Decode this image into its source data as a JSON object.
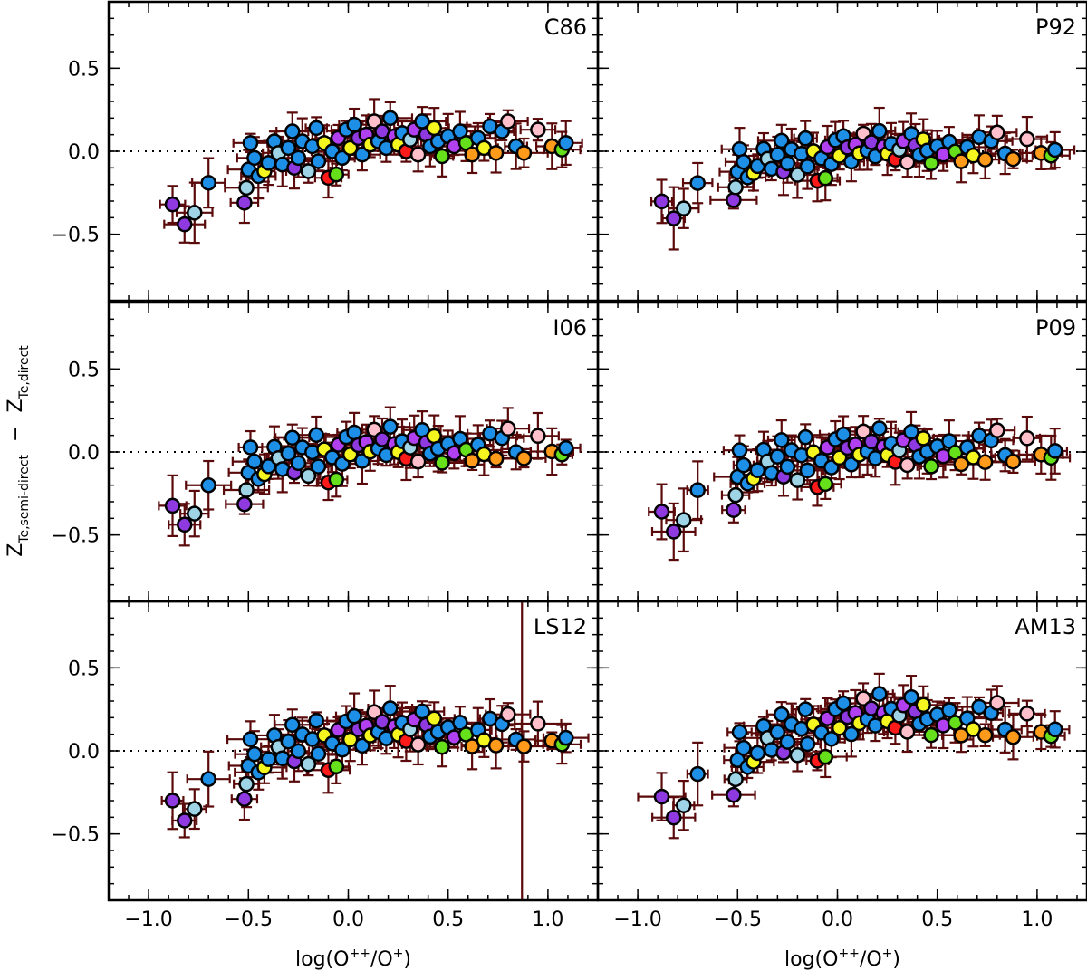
{
  "chart_data": {
    "type": "scatter",
    "layout": {
      "rows": 3,
      "cols": 2,
      "shared_axes": true
    },
    "xlabel_parts": {
      "base": "log(O",
      "sup": "++",
      "mid": "/O",
      "sup2": "+",
      "end": ")"
    },
    "ylabel_parts": {
      "z1": "Z",
      "sub1": "Te,semi-direct",
      "minus": "−",
      "z2": "Z",
      "sub2": "Te,direct"
    },
    "xlim": [
      -1.2,
      1.25
    ],
    "ylim": [
      -0.9,
      0.9
    ],
    "x_ticks": [
      -1.0,
      -0.5,
      0.0,
      0.5,
      1.0
    ],
    "x_tick_labels": [
      "−1.0",
      "−0.5",
      "0.0",
      "0.5",
      "1.0"
    ],
    "y_ticks": [
      -0.5,
      0.0,
      0.5
    ],
    "y_tick_labels": [
      "−0.5",
      "0.0",
      "0.5"
    ],
    "zero_line": 0.0,
    "colors": {
      "error_bar": "#5a0a0a",
      "palette": [
        "#8e3ae0",
        "#9fd3e6",
        "#1e8fe6",
        "#f5f520",
        "#ff1a1a",
        "#66e01a",
        "#ff9a1a",
        "#ffc0cb",
        "#b040f0"
      ]
    },
    "panels": [
      {
        "label": "C86",
        "shift": 0.0,
        "amp": 1.0,
        "extra": 0.0
      },
      {
        "label": "P92",
        "shift": -0.03,
        "amp": 0.85,
        "extra": -0.02
      },
      {
        "label": "I06",
        "shift": -0.02,
        "amp": 0.95,
        "extra": -0.02
      },
      {
        "label": "P09",
        "shift": -0.04,
        "amp": 1.0,
        "extra": -0.02
      },
      {
        "label": "LS12",
        "shift": 0.02,
        "amp": 1.0,
        "extra": 0.04
      },
      {
        "label": "AM13",
        "shift": 0.06,
        "amp": 1.05,
        "extra": 0.08
      }
    ],
    "base_points": [
      {
        "x": -0.88,
        "y": -0.32,
        "c": 0
      },
      {
        "x": -0.82,
        "y": -0.44,
        "c": 0
      },
      {
        "x": -0.77,
        "y": -0.37,
        "c": 1
      },
      {
        "x": -0.7,
        "y": -0.19,
        "c": 2
      },
      {
        "x": -0.52,
        "y": -0.31,
        "c": 0
      },
      {
        "x": -0.51,
        "y": -0.22,
        "c": 1
      },
      {
        "x": -0.5,
        "y": -0.11,
        "c": 2
      },
      {
        "x": -0.49,
        "y": 0.05,
        "c": 2
      },
      {
        "x": -0.47,
        "y": -0.04,
        "c": 2
      },
      {
        "x": -0.45,
        "y": -0.15,
        "c": 2
      },
      {
        "x": -0.42,
        "y": -0.12,
        "c": 3
      },
      {
        "x": -0.4,
        "y": -0.07,
        "c": 2
      },
      {
        "x": -0.37,
        "y": 0.06,
        "c": 2
      },
      {
        "x": -0.35,
        "y": -0.01,
        "c": 1
      },
      {
        "x": -0.33,
        "y": -0.08,
        "c": 2
      },
      {
        "x": -0.3,
        "y": 0.02,
        "c": 2
      },
      {
        "x": -0.28,
        "y": 0.12,
        "c": 2
      },
      {
        "x": -0.27,
        "y": -0.1,
        "c": 0
      },
      {
        "x": -0.25,
        "y": -0.04,
        "c": 2
      },
      {
        "x": -0.23,
        "y": 0.06,
        "c": 2
      },
      {
        "x": -0.2,
        "y": -0.12,
        "c": 1
      },
      {
        "x": -0.18,
        "y": 0.03,
        "c": 2
      },
      {
        "x": -0.16,
        "y": 0.14,
        "c": 2
      },
      {
        "x": -0.15,
        "y": -0.06,
        "c": 2
      },
      {
        "x": -0.12,
        "y": 0.05,
        "c": 3
      },
      {
        "x": -0.1,
        "y": -0.16,
        "c": 4
      },
      {
        "x": -0.08,
        "y": 0.0,
        "c": 2
      },
      {
        "x": -0.06,
        "y": -0.14,
        "c": 5
      },
      {
        "x": -0.05,
        "y": 0.08,
        "c": 8
      },
      {
        "x": -0.03,
        "y": -0.04,
        "c": 2
      },
      {
        "x": -0.01,
        "y": 0.13,
        "c": 2
      },
      {
        "x": 0.01,
        "y": 0.02,
        "c": 3
      },
      {
        "x": 0.03,
        "y": 0.16,
        "c": 2
      },
      {
        "x": 0.05,
        "y": 0.08,
        "c": 0
      },
      {
        "x": 0.07,
        "y": -0.02,
        "c": 2
      },
      {
        "x": 0.09,
        "y": 0.1,
        "c": 8
      },
      {
        "x": 0.11,
        "y": 0.04,
        "c": 3
      },
      {
        "x": 0.13,
        "y": 0.18,
        "c": 7
      },
      {
        "x": 0.15,
        "y": 0.06,
        "c": 2
      },
      {
        "x": 0.17,
        "y": 0.12,
        "c": 0
      },
      {
        "x": 0.19,
        "y": 0.02,
        "c": 2
      },
      {
        "x": 0.21,
        "y": 0.2,
        "c": 2
      },
      {
        "x": 0.23,
        "y": 0.09,
        "c": 8
      },
      {
        "x": 0.25,
        "y": 0.04,
        "c": 3
      },
      {
        "x": 0.27,
        "y": 0.11,
        "c": 2
      },
      {
        "x": 0.29,
        "y": 0.0,
        "c": 4
      },
      {
        "x": 0.31,
        "y": 0.07,
        "c": 1
      },
      {
        "x": 0.33,
        "y": 0.13,
        "c": 8
      },
      {
        "x": 0.35,
        "y": -0.02,
        "c": 7
      },
      {
        "x": 0.37,
        "y": 0.18,
        "c": 2
      },
      {
        "x": 0.39,
        "y": 0.1,
        "c": 0
      },
      {
        "x": 0.41,
        "y": 0.03,
        "c": 2
      },
      {
        "x": 0.43,
        "y": 0.14,
        "c": 3
      },
      {
        "x": 0.45,
        "y": 0.06,
        "c": 2
      },
      {
        "x": 0.47,
        "y": -0.03,
        "c": 5
      },
      {
        "x": 0.5,
        "y": 0.09,
        "c": 2
      },
      {
        "x": 0.53,
        "y": 0.03,
        "c": 8
      },
      {
        "x": 0.56,
        "y": 0.12,
        "c": 2
      },
      {
        "x": 0.59,
        "y": 0.05,
        "c": 5
      },
      {
        "x": 0.62,
        "y": -0.02,
        "c": 6
      },
      {
        "x": 0.65,
        "y": 0.08,
        "c": 2
      },
      {
        "x": 0.68,
        "y": 0.02,
        "c": 3
      },
      {
        "x": 0.71,
        "y": 0.15,
        "c": 2
      },
      {
        "x": 0.74,
        "y": -0.01,
        "c": 6
      },
      {
        "x": 0.77,
        "y": 0.12,
        "c": 2
      },
      {
        "x": 0.8,
        "y": 0.18,
        "c": 7
      },
      {
        "x": 0.84,
        "y": 0.03,
        "c": 2
      },
      {
        "x": 0.88,
        "y": -0.01,
        "c": 6
      },
      {
        "x": 0.95,
        "y": 0.13,
        "c": 7
      },
      {
        "x": 1.02,
        "y": 0.03,
        "c": 6
      },
      {
        "x": 1.07,
        "y": 0.01,
        "c": 5
      },
      {
        "x": 1.09,
        "y": 0.05,
        "c": 2
      }
    ]
  }
}
